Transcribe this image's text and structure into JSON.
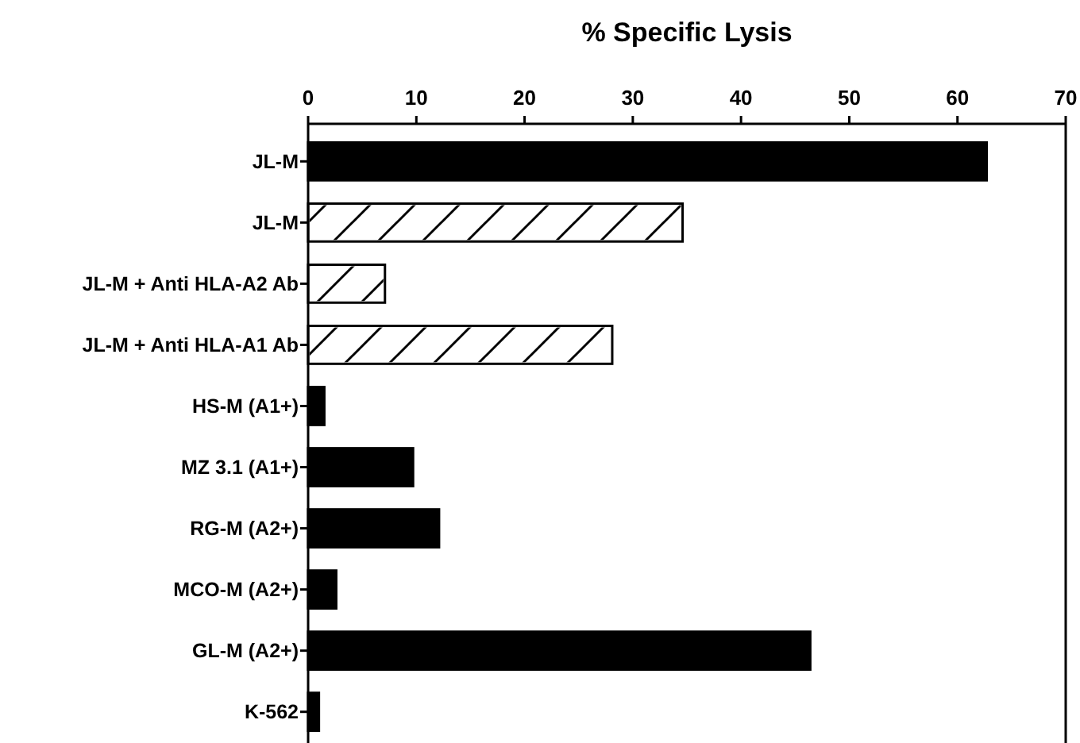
{
  "chart_data": {
    "type": "bar",
    "orientation": "horizontal",
    "title": "% Specific Lysis",
    "categories": [
      "JL-M",
      "JL-M",
      "JL-M + Anti HLA-A2 Ab",
      "JL-M + Anti HLA-A1 Ab",
      "HS-M (A1+)",
      "MZ 3.1 (A1+)",
      "RG-M (A2+)",
      "MCO-M (A2+)",
      "GL-M (A2+)",
      "K-562"
    ],
    "values": [
      62.7,
      34.6,
      7.1,
      28.1,
      1.5,
      9.7,
      12.1,
      2.6,
      46.4,
      1.0
    ],
    "colors": [
      "#000000",
      "#ffffff",
      "#ffffff",
      "#ffffff",
      "#000000",
      "#000000",
      "#000000",
      "#000000",
      "#000000",
      "#000000"
    ],
    "xlim": [
      0,
      70
    ],
    "xticks": [
      0,
      10,
      20,
      30,
      40,
      50,
      60,
      70
    ]
  }
}
